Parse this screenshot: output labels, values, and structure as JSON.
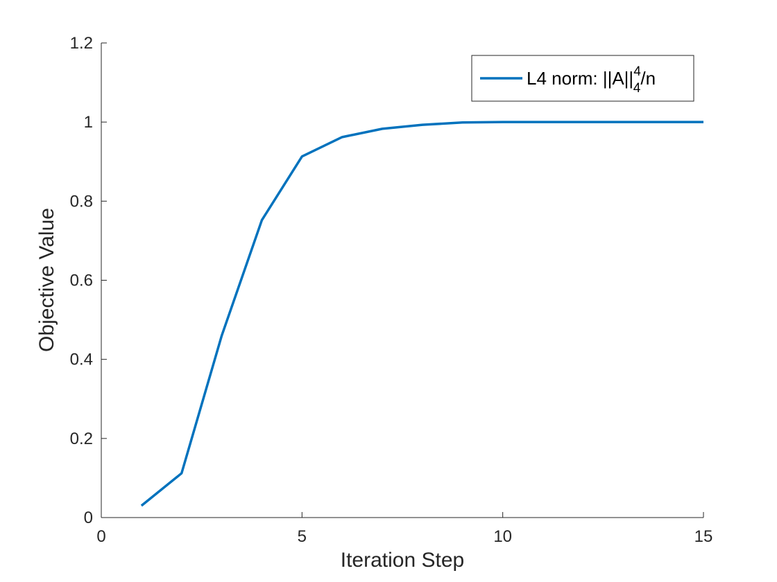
{
  "chart_data": {
    "type": "line",
    "title": "",
    "xlabel": "Iteration Step",
    "ylabel": "Objective Value",
    "xlim": [
      0,
      15
    ],
    "ylim": [
      0,
      1.2
    ],
    "xticks": [
      0,
      5,
      10,
      15
    ],
    "yticks": [
      0,
      0.2,
      0.4,
      0.6,
      0.8,
      1,
      1.2
    ],
    "xtick_labels": [
      "0",
      "5",
      "10",
      "15"
    ],
    "ytick_labels": [
      "0",
      "0.2",
      "0.4",
      "0.6",
      "0.8",
      "1",
      "1.2"
    ],
    "grid": false,
    "legend_position": "top-right",
    "series": [
      {
        "legend": {
          "prefix": "L4 norm: ||A||",
          "sup": "4",
          "sub": "4",
          "suffix": "/n"
        },
        "color": "#0072BD",
        "x": [
          1,
          2,
          3,
          4,
          5,
          6,
          7,
          8,
          9,
          10,
          11,
          12,
          13,
          14,
          15
        ],
        "y": [
          0.03,
          0.112,
          0.46,
          0.752,
          0.913,
          0.962,
          0.983,
          0.993,
          0.999,
          1.0,
          1.0,
          1.0,
          1.0,
          1.0,
          1.0
        ]
      }
    ]
  }
}
